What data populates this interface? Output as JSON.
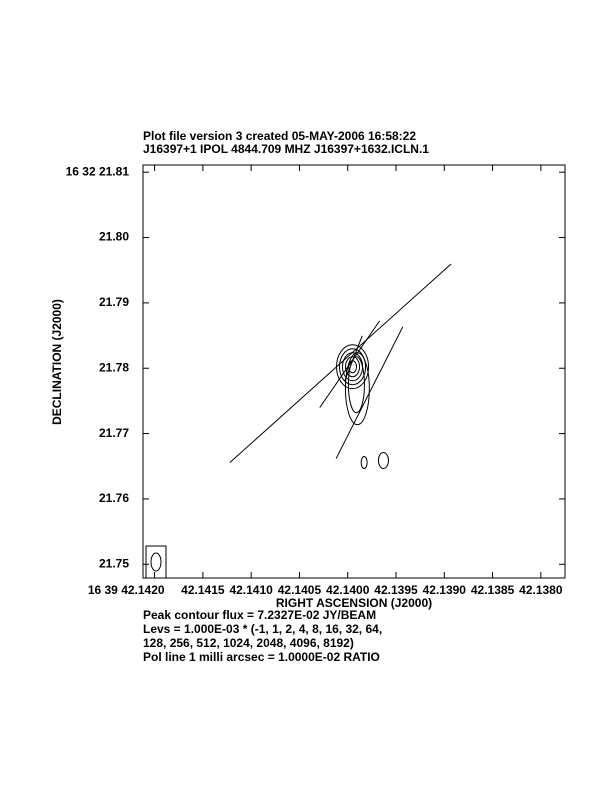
{
  "chart_data": {
    "type": "contour",
    "title": "Plot file version 3  created 05-MAY-2006 16:58:22",
    "subtitle": "J16397+1  IPOL  4844.709 MHZ  J16397+1632.ICLN.1",
    "x_label": "RIGHT ASCENSION (J2000)",
    "y_label": "DECLINATION (J2000)",
    "xlim": [
      42.14212,
      42.13775
    ],
    "ylim": [
      21.7479,
      21.8111
    ],
    "xticks": [
      {
        "value": 42.142,
        "label": "16 39 42.1420"
      },
      42.1415,
      {
        "value": 42.141,
        "label": "42.1410"
      },
      42.1405,
      {
        "value": 42.14,
        "label": "42.1400"
      },
      42.1395,
      {
        "value": 42.139,
        "label": "42.1390"
      },
      42.1385,
      {
        "value": 42.138,
        "label": "42.1380"
      }
    ],
    "yticks": [
      21.75,
      21.76,
      21.77,
      21.78,
      21.79,
      {
        "value": 21.8,
        "label": "21.80"
      },
      {
        "value": 21.81,
        "label": "16 32 21.81"
      }
    ],
    "color": "#000000",
    "contours": [
      {
        "ra": 42.13995,
        "dec": 21.78023,
        "ra_halfwidth": 0.000166,
        "dec_halfwidth": 0.00336
      },
      {
        "ra": 42.13995,
        "dec": 21.78023,
        "ra_halfwidth": 0.000135,
        "dec_halfwidth": 0.00275
      },
      {
        "ra": 42.13995,
        "dec": 21.78023,
        "ra_halfwidth": 0.000104,
        "dec_halfwidth": 0.00214
      },
      {
        "ra": 42.13995,
        "dec": 21.78023,
        "ra_halfwidth": 7.25e-05,
        "dec_halfwidth": 0.00153
      },
      {
        "ra": 42.13995,
        "dec": 21.78023,
        "ra_halfwidth": 4.15e-05,
        "dec_halfwidth": 0.00092
      },
      {
        "ra": 42.1399,
        "dec": 21.77687,
        "ra_halfwidth": 0.000124,
        "dec_halfwidth": 0.0055
      },
      {
        "ra": 42.13991,
        "dec": 21.77748,
        "ra_halfwidth": 8.3e-05,
        "dec_halfwidth": 0.00427
      },
      {
        "ra": 42.13983,
        "dec": 21.76557,
        "ra_halfwidth": 3.1e-05,
        "dec_halfwidth": 0.00092
      },
      {
        "ra": 42.13963,
        "dec": 21.76588,
        "ra_halfwidth": 5.2e-05,
        "dec_halfwidth": 0.00122
      }
    ],
    "vectors": [
      {
        "ra": [
          42.14122,
          42.13893
        ],
        "dec": [
          21.76557,
          21.79595
        ]
      },
      {
        "ra": [
          42.14029,
          42.13967
        ],
        "dec": [
          21.77397,
          21.78725
        ]
      },
      {
        "ra": [
          42.14012,
          42.13943
        ],
        "dec": [
          21.76618,
          21.78634
        ]
      },
      {
        "ra": [
          42.14003,
          42.13985
        ],
        "dec": [
          21.77809,
          21.78496
        ]
      }
    ],
    "notes": [
      "Peak contour flux =  7.2327E-02 JY/BEAM",
      "Levs = 1.000E-03 * (-1, 1, 2, 4, 8, 16, 32, 64,",
      "128, 256, 512, 1024, 2048, 4096, 8192)",
      "Pol line 1 milli arcsec =  1.0000E-02 RATIO"
    ]
  }
}
